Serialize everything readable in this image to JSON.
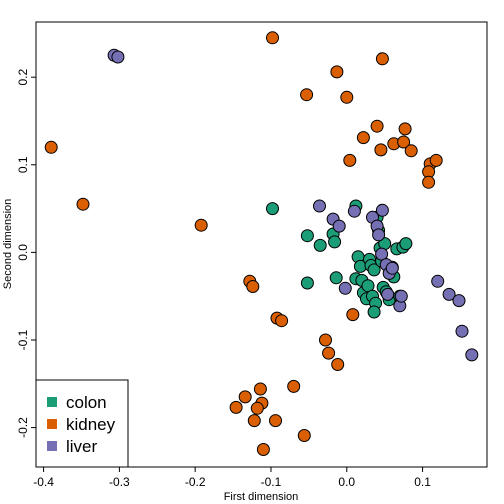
{
  "chart_data": {
    "type": "scatter",
    "title": "",
    "xlabel": "First dimension",
    "ylabel": "Second dimension",
    "xlim": [
      -0.41,
      0.185
    ],
    "ylim": [
      -0.245,
      0.263
    ],
    "xticks": [
      -0.4,
      -0.3,
      -0.2,
      -0.1,
      0.0,
      0.1
    ],
    "xtick_labels": [
      "-0.4",
      "-0.3",
      "-0.2",
      "-0.1",
      "0.0",
      "0.1"
    ],
    "yticks": [
      -0.2,
      -0.1,
      0.0,
      0.1,
      0.2
    ],
    "ytick_labels": [
      "-0.2",
      "-0.1",
      "0.0",
      "0.1",
      "0.2"
    ],
    "grid": false,
    "legend": {
      "position": "bottom-left",
      "entries": [
        "colon",
        "kidney",
        "liver"
      ]
    },
    "series": [
      {
        "name": "colon",
        "color": "#1b9e77",
        "points": [
          [
            -0.098,
            0.05
          ],
          [
            -0.052,
            0.019
          ],
          [
            -0.035,
            0.008
          ],
          [
            -0.018,
            0.021
          ],
          [
            -0.016,
            0.012
          ],
          [
            -0.052,
            -0.035
          ],
          [
            -0.014,
            -0.029
          ],
          [
            0.012,
            0.053
          ],
          [
            0.015,
            -0.005
          ],
          [
            0.018,
            -0.016
          ],
          [
            0.012,
            -0.03
          ],
          [
            0.02,
            -0.032
          ],
          [
            0.022,
            -0.046
          ],
          [
            0.026,
            -0.053
          ],
          [
            0.028,
            -0.038
          ],
          [
            0.03,
            -0.008
          ],
          [
            0.032,
            -0.015
          ],
          [
            0.034,
            -0.05
          ],
          [
            0.036,
            -0.02
          ],
          [
            0.038,
            -0.058
          ],
          [
            0.04,
            0.04
          ],
          [
            0.042,
            0.025
          ],
          [
            0.044,
            0.005
          ],
          [
            0.046,
            -0.01
          ],
          [
            0.048,
            -0.04
          ],
          [
            0.052,
            -0.045
          ],
          [
            0.056,
            -0.054
          ],
          [
            0.06,
            -0.017
          ],
          [
            0.062,
            -0.028
          ],
          [
            0.066,
            0.004
          ],
          [
            0.07,
            -0.05
          ],
          [
            0.074,
            0.006
          ],
          [
            0.078,
            0.01
          ],
          [
            0.036,
            -0.068
          ],
          [
            0.05,
            0.01
          ]
        ]
      },
      {
        "name": "kidney",
        "color": "#d95f02",
        "points": [
          [
            -0.39,
            0.12
          ],
          [
            -0.348,
            0.055
          ],
          [
            -0.192,
            0.031
          ],
          [
            -0.098,
            0.245
          ],
          [
            -0.053,
            0.18
          ],
          [
            -0.013,
            0.206
          ],
          [
            0.0,
            0.177
          ],
          [
            0.047,
            0.221
          ],
          [
            0.022,
            0.131
          ],
          [
            0.04,
            0.144
          ],
          [
            0.062,
            0.124
          ],
          [
            0.004,
            0.105
          ],
          [
            0.045,
            0.117
          ],
          [
            0.075,
            0.126
          ],
          [
            0.077,
            0.141
          ],
          [
            0.085,
            0.116
          ],
          [
            0.11,
            0.101
          ],
          [
            0.108,
            0.092
          ],
          [
            0.118,
            0.105
          ],
          [
            0.108,
            0.08
          ],
          [
            -0.128,
            -0.033
          ],
          [
            -0.124,
            -0.039
          ],
          [
            -0.092,
            -0.075
          ],
          [
            -0.086,
            -0.078
          ],
          [
            -0.028,
            -0.1
          ],
          [
            -0.024,
            -0.115
          ],
          [
            -0.012,
            -0.128
          ],
          [
            0.008,
            -0.071
          ],
          [
            -0.07,
            -0.153
          ],
          [
            -0.134,
            -0.165
          ],
          [
            -0.146,
            -0.177
          ],
          [
            -0.114,
            -0.156
          ],
          [
            -0.112,
            -0.172
          ],
          [
            -0.118,
            -0.178
          ],
          [
            -0.122,
            -0.192
          ],
          [
            -0.094,
            -0.192
          ],
          [
            -0.11,
            -0.225
          ],
          [
            -0.056,
            -0.209
          ]
        ]
      },
      {
        "name": "liver",
        "color": "#7570b3",
        "points": [
          [
            -0.307,
            0.225
          ],
          [
            -0.302,
            0.223
          ],
          [
            -0.036,
            0.053
          ],
          [
            -0.018,
            0.038
          ],
          [
            -0.01,
            0.03
          ],
          [
            0.01,
            0.047
          ],
          [
            0.034,
            0.04
          ],
          [
            0.047,
            0.048
          ],
          [
            0.04,
            0.03
          ],
          [
            0.042,
            0.02
          ],
          [
            0.046,
            -0.002
          ],
          [
            0.052,
            -0.014
          ],
          [
            0.056,
            -0.024
          ],
          [
            0.06,
            -0.018
          ],
          [
            -0.002,
            -0.041
          ],
          [
            0.054,
            -0.048
          ],
          [
            0.07,
            -0.061
          ],
          [
            0.072,
            -0.05
          ],
          [
            0.12,
            -0.033
          ],
          [
            0.135,
            -0.048
          ],
          [
            0.148,
            -0.055
          ],
          [
            0.152,
            -0.09
          ],
          [
            0.165,
            -0.117
          ]
        ]
      }
    ]
  }
}
